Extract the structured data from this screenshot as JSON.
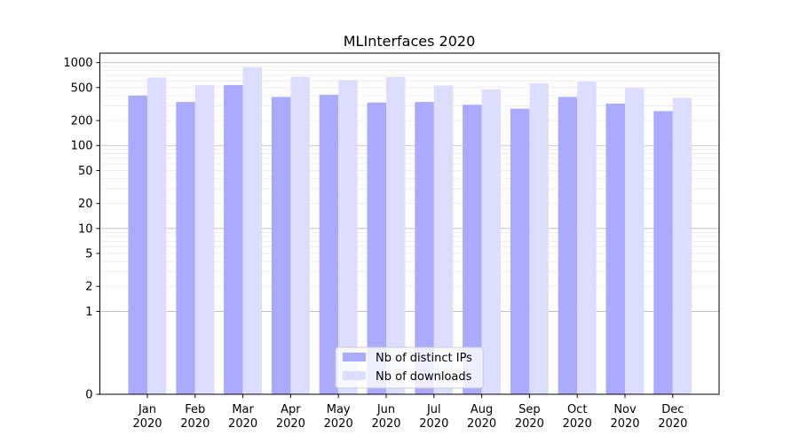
{
  "chart_data": {
    "type": "bar",
    "title": "MLInterfaces 2020",
    "xlabel": "",
    "ylabel": "",
    "yscale": "symlog",
    "yticks": [
      0,
      1,
      2,
      5,
      10,
      20,
      50,
      100,
      200,
      500,
      1000
    ],
    "ytick_labels": [
      "0",
      "1",
      "2",
      "5",
      "10",
      "20",
      "50",
      "100",
      "200",
      "500",
      "1000"
    ],
    "ylim": [
      0,
      1300
    ],
    "categories": [
      [
        "Jan",
        "2020"
      ],
      [
        "Feb",
        "2020"
      ],
      [
        "Mar",
        "2020"
      ],
      [
        "Apr",
        "2020"
      ],
      [
        "May",
        "2020"
      ],
      [
        "Jun",
        "2020"
      ],
      [
        "Jul",
        "2020"
      ],
      [
        "Aug",
        "2020"
      ],
      [
        "Sep",
        "2020"
      ],
      [
        "Oct",
        "2020"
      ],
      [
        "Nov",
        "2020"
      ],
      [
        "Dec",
        "2020"
      ]
    ],
    "series": [
      {
        "name": "Nb of distinct IPs",
        "color": "#aaaaff",
        "values": [
          400,
          335,
          535,
          385,
          410,
          330,
          335,
          310,
          278,
          385,
          320,
          260
        ]
      },
      {
        "name": "Nb of downloads",
        "color": "#ddddff",
        "values": [
          660,
          535,
          880,
          670,
          615,
          670,
          530,
          475,
          565,
          590,
          495,
          375
        ]
      }
    ],
    "grid": true,
    "legend_position": "bottom-center"
  }
}
